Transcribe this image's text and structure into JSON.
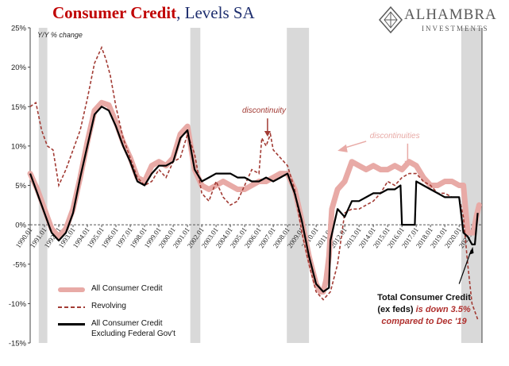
{
  "title": {
    "main": "Consumer Credit",
    "sub": ", Levels SA"
  },
  "logo": {
    "name": "ALHAMBRA",
    "sub": "INVESTMENTS"
  },
  "chart_data": {
    "type": "line",
    "title": "Consumer Credit, Levels SA",
    "ylabel": "Y/Y % change",
    "xlabel": "",
    "xlim": [
      1990.0,
      2021.6
    ],
    "ylim": [
      -15,
      25
    ],
    "yticks": [
      -15,
      -10,
      -5,
      0,
      5,
      10,
      15,
      20,
      25
    ],
    "ytick_labels": [
      "-15%",
      "-10%",
      "-5%",
      "0%",
      "5%",
      "10%",
      "15%",
      "20%",
      "25%"
    ],
    "xtick_labels": [
      "1990.01",
      "1991.01",
      "1992.01",
      "1993.01",
      "1994.01",
      "1995.01",
      "1996.01",
      "1997.01",
      "1998.01",
      "1999.01",
      "2000.01",
      "2001.01",
      "2002.01",
      "2003.01",
      "2004.01",
      "2005.01",
      "2006.01",
      "2007.01",
      "2008.01",
      "2009.01",
      "2010.01",
      "2011.01",
      "2012.01",
      "2013.01",
      "2014.01",
      "2015.01",
      "2016.01",
      "2017.01",
      "2018.01",
      "2019.01",
      "2020.01",
      "2021.01"
    ],
    "recessions": [
      [
        1990.6,
        1991.2
      ],
      [
        2001.2,
        2001.9
      ],
      [
        2007.95,
        2009.5
      ],
      [
        2020.15,
        2021.6
      ]
    ],
    "series": [
      {
        "name": "All Consumer Credit",
        "color": "#e8aaa6",
        "style": "thick",
        "x": [
          1990.0,
          1990.5,
          1991.0,
          1991.5,
          1992.0,
          1992.5,
          1993.0,
          1993.5,
          1994.0,
          1994.5,
          1995.0,
          1995.5,
          1996.0,
          1996.5,
          1997.0,
          1997.5,
          1998.0,
          1998.5,
          1999.0,
          1999.5,
          2000.0,
          2000.5,
          2001.0,
          2001.5,
          2002.0,
          2002.5,
          2003.0,
          2003.5,
          2004.0,
          2004.5,
          2005.0,
          2005.5,
          2006.0,
          2006.5,
          2007.0,
          2007.5,
          2008.0,
          2008.5,
          2009.0,
          2009.5,
          2010.0,
          2010.3,
          2010.5,
          2010.7,
          2010.9,
          2011.1,
          2011.5,
          2012.0,
          2012.5,
          2013.0,
          2013.5,
          2014.0,
          2014.5,
          2015.0,
          2015.5,
          2016.0,
          2016.5,
          2017.0,
          2017.5,
          2018.0,
          2018.5,
          2019.0,
          2019.5,
          2020.0,
          2020.3,
          2020.6,
          2021.0,
          2021.2,
          2021.4
        ],
        "y": [
          6.5,
          4.5,
          2.0,
          -0.5,
          -1.5,
          -0.5,
          2.0,
          6.0,
          10.5,
          14.5,
          15.5,
          15.2,
          13.0,
          10.5,
          8.5,
          6.0,
          5.5,
          7.5,
          8.0,
          7.5,
          8.5,
          11.5,
          12.5,
          7.0,
          5.0,
          4.5,
          5.0,
          5.5,
          5.0,
          4.5,
          4.5,
          5.0,
          5.5,
          5.5,
          6.0,
          6.5,
          6.5,
          4.5,
          0.5,
          -4.0,
          -7.5,
          -8.5,
          -8.5,
          -7.0,
          -4.0,
          2.0,
          4.5,
          5.5,
          8.0,
          7.5,
          7.0,
          7.5,
          7.0,
          7.0,
          7.5,
          7.0,
          8.0,
          7.5,
          6.0,
          5.0,
          5.0,
          5.5,
          5.5,
          5.0,
          5.0,
          -1.0,
          -1.0,
          1.0,
          2.5
        ]
      },
      {
        "name": "Revolving",
        "color": "#a23b34",
        "style": "dashed",
        "x": [
          1990.0,
          1990.4,
          1990.8,
          1991.2,
          1991.6,
          1992.0,
          1992.5,
          1993.0,
          1993.5,
          1994.0,
          1994.5,
          1995.0,
          1995.3,
          1995.6,
          1996.0,
          1996.5,
          1997.0,
          1997.5,
          1998.0,
          1998.5,
          1999.0,
          1999.5,
          2000.0,
          2000.5,
          2001.0,
          2001.5,
          2002.0,
          2002.5,
          2003.0,
          2003.5,
          2004.0,
          2004.5,
          2005.0,
          2005.5,
          2006.0,
          2006.2,
          2006.5,
          2006.8,
          2007.0,
          2007.5,
          2008.0,
          2008.5,
          2009.0,
          2009.5,
          2010.0,
          2010.5,
          2011.0,
          2011.5,
          2012.0,
          2012.5,
          2013.0,
          2013.5,
          2014.0,
          2014.5,
          2015.0,
          2015.5,
          2016.0,
          2016.5,
          2017.0,
          2017.5,
          2018.0,
          2018.5,
          2019.0,
          2019.5,
          2020.0,
          2020.3,
          2020.6,
          2020.9,
          2021.1,
          2021.3
        ],
        "y": [
          15.0,
          15.5,
          12.0,
          10.0,
          9.5,
          5.0,
          7.0,
          9.5,
          12.0,
          16.0,
          20.5,
          22.5,
          21.0,
          19.0,
          15.0,
          11.0,
          8.5,
          6.0,
          5.0,
          5.5,
          7.0,
          6.0,
          8.0,
          8.5,
          11.5,
          9.0,
          4.0,
          3.0,
          5.5,
          3.5,
          2.5,
          3.0,
          5.0,
          7.0,
          6.5,
          11.0,
          10.0,
          11.5,
          9.5,
          8.5,
          7.5,
          4.5,
          -1.0,
          -5.0,
          -8.5,
          -9.5,
          -8.5,
          -5.0,
          1.5,
          2.0,
          2.0,
          2.5,
          3.0,
          4.0,
          5.5,
          5.0,
          6.0,
          6.5,
          6.5,
          5.5,
          5.0,
          4.0,
          4.0,
          3.5,
          3.5,
          1.0,
          -5.0,
          -10.0,
          -11.0,
          -12.0
        ]
      },
      {
        "name": "All Consumer Credit Excluding Federal Gov't",
        "color": "#000000",
        "style": "solid",
        "x": [
          1990.0,
          1990.5,
          1991.0,
          1991.5,
          1992.0,
          1992.5,
          1993.0,
          1993.5,
          1994.0,
          1994.5,
          1995.0,
          1995.5,
          1996.0,
          1996.5,
          1997.0,
          1997.5,
          1998.0,
          1998.5,
          1999.0,
          1999.5,
          2000.0,
          2000.5,
          2001.0,
          2001.5,
          2002.0,
          2002.5,
          2003.0,
          2003.5,
          2004.0,
          2004.5,
          2005.0,
          2005.5,
          2006.0,
          2006.5,
          2007.0,
          2007.5,
          2008.0,
          2008.5,
          2009.0,
          2009.5,
          2010.0,
          2010.5,
          2010.9,
          2011.0,
          2011.5,
          2012.0,
          2012.5,
          2013.0,
          2013.5,
          2014.0,
          2014.5,
          2015.0,
          2015.5,
          2015.9,
          2016.0,
          2016.5,
          2016.9,
          2017.0,
          2017.5,
          2018.0,
          2018.5,
          2019.0,
          2019.5,
          2020.0,
          2020.3,
          2020.6,
          2020.9,
          2021.1,
          2021.3
        ],
        "y": [
          6.5,
          4.0,
          1.5,
          -1.0,
          -2.0,
          -1.0,
          1.5,
          6.0,
          10.0,
          14.0,
          15.0,
          14.5,
          12.5,
          10.0,
          8.0,
          5.5,
          5.0,
          6.5,
          7.5,
          7.5,
          8.0,
          11.0,
          12.0,
          7.0,
          5.5,
          6.0,
          6.5,
          6.5,
          6.5,
          6.0,
          6.0,
          5.5,
          5.5,
          6.0,
          5.5,
          6.0,
          6.5,
          4.0,
          0.5,
          -4.0,
          -7.5,
          -8.5,
          -8.0,
          -2.0,
          2.0,
          1.0,
          3.0,
          3.0,
          3.5,
          4.0,
          4.0,
          4.5,
          4.5,
          5.0,
          0.0,
          0.0,
          0.0,
          5.5,
          5.0,
          4.5,
          4.0,
          3.5,
          3.5,
          3.5,
          -1.0,
          -1.5,
          -2.5,
          -2.5,
          1.5
        ]
      }
    ],
    "annotations": [
      {
        "text": "discontinuity",
        "x": 2006.8,
        "y": 14.2
      },
      {
        "text": "discontinuities",
        "x": 2015.5,
        "y": 11.0
      }
    ]
  },
  "subtitle": "Y/Y % change",
  "note": {
    "line1": "Total Consumer Credit",
    "line2a": "(ex feds) ",
    "line2b": "is down 3.5%",
    "line3": "compared to Dec '19"
  },
  "legend": [
    {
      "label": "All Consumer Credit",
      "color": "#e8aaa6"
    },
    {
      "label": "Revolving",
      "color": "#a23b34"
    },
    {
      "label": "All Consumer Credit",
      "label2": "Excluding Federal Gov't",
      "color": "#000000"
    }
  ]
}
